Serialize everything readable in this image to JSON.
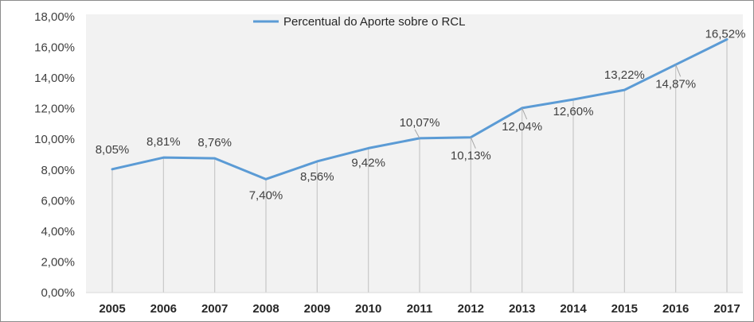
{
  "chart_data": {
    "type": "line",
    "title": "",
    "xlabel": "",
    "ylabel": "",
    "x": [
      "2005",
      "2006",
      "2007",
      "2008",
      "2009",
      "2010",
      "2011",
      "2012",
      "2013",
      "2014",
      "2015",
      "2016",
      "2017"
    ],
    "series": [
      {
        "name": "Percentual do Aporte sobre o RCL",
        "values": [
          8.05,
          8.81,
          8.76,
          7.4,
          8.56,
          9.42,
          10.07,
          10.13,
          12.04,
          12.6,
          13.22,
          14.87,
          16.52
        ],
        "labels": [
          "8,05%",
          "8,81%",
          "8,76%",
          "7,40%",
          "8,56%",
          "9,42%",
          "10,07%",
          "10,13%",
          "12,04%",
          "12,60%",
          "13,22%",
          "14,87%",
          "16,52%"
        ],
        "color": "#5b9bd5"
      }
    ],
    "ylim": [
      0,
      18
    ],
    "yticks": [
      0,
      2,
      4,
      6,
      8,
      10,
      12,
      14,
      16,
      18
    ],
    "ytick_labels": [
      "0,00%",
      "2,00%",
      "4,00%",
      "6,00%",
      "8,00%",
      "10,00%",
      "12,00%",
      "14,00%",
      "16,00%",
      "18,00%"
    ],
    "legend_position": "top",
    "grid": false,
    "drop_lines": true,
    "plot_area_color": "#f2f2f2"
  }
}
